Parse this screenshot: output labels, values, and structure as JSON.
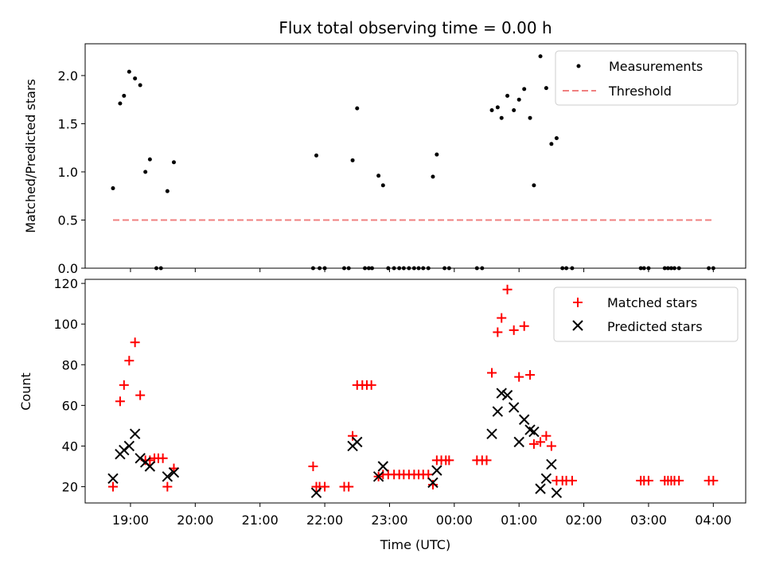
{
  "chart_data": [
    {
      "type": "scatter",
      "title": "Flux total observing time = 0.00 h",
      "xlabel": "",
      "ylabel": "Matched/Predicted stars",
      "xlim": [
        18.3,
        28.5
      ],
      "ylim": [
        0,
        2.33
      ],
      "yticks": [
        0.0,
        0.5,
        1.0,
        1.5,
        2.0
      ],
      "ytick_labels": [
        "0.0",
        "0.5",
        "1.0",
        "1.5",
        "2.0"
      ],
      "legend_position": "top-right",
      "series": [
        {
          "name": "Measurements",
          "kind": "points",
          "color": "#000000",
          "points": [
            [
              18.73,
              0.83
            ],
            [
              18.84,
              1.71
            ],
            [
              18.9,
              1.79
            ],
            [
              18.98,
              2.04
            ],
            [
              19.07,
              1.97
            ],
            [
              19.15,
              1.9
            ],
            [
              19.23,
              1.0
            ],
            [
              19.3,
              1.13
            ],
            [
              19.4,
              0.0
            ],
            [
              19.47,
              0.0
            ],
            [
              19.57,
              0.8
            ],
            [
              19.67,
              1.1
            ],
            [
              21.82,
              0.0
            ],
            [
              21.87,
              1.17
            ],
            [
              21.92,
              0.0
            ],
            [
              22.0,
              0.0
            ],
            [
              22.3,
              0.0
            ],
            [
              22.37,
              0.0
            ],
            [
              22.43,
              1.12
            ],
            [
              22.5,
              1.66
            ],
            [
              22.62,
              0.0
            ],
            [
              22.68,
              0.0
            ],
            [
              22.73,
              0.0
            ],
            [
              22.83,
              0.96
            ],
            [
              22.9,
              0.86
            ],
            [
              22.98,
              0.0
            ],
            [
              23.07,
              0.0
            ],
            [
              23.15,
              0.0
            ],
            [
              23.22,
              0.0
            ],
            [
              23.3,
              0.0
            ],
            [
              23.38,
              0.0
            ],
            [
              23.45,
              0.0
            ],
            [
              23.52,
              0.0
            ],
            [
              23.6,
              0.0
            ],
            [
              23.67,
              0.95
            ],
            [
              23.73,
              1.18
            ],
            [
              23.85,
              0.0
            ],
            [
              23.92,
              0.0
            ],
            [
              24.35,
              0.0
            ],
            [
              24.43,
              0.0
            ],
            [
              24.58,
              1.64
            ],
            [
              24.67,
              1.67
            ],
            [
              24.73,
              1.56
            ],
            [
              24.82,
              1.79
            ],
            [
              24.92,
              1.64
            ],
            [
              25.0,
              1.75
            ],
            [
              25.08,
              1.86
            ],
            [
              25.17,
              1.56
            ],
            [
              25.23,
              0.86
            ],
            [
              25.33,
              2.2
            ],
            [
              25.42,
              1.87
            ],
            [
              25.5,
              1.29
            ],
            [
              25.58,
              1.35
            ],
            [
              25.67,
              0.0
            ],
            [
              25.73,
              0.0
            ],
            [
              25.82,
              0.0
            ],
            [
              26.88,
              0.0
            ],
            [
              26.93,
              0.0
            ],
            [
              27.0,
              0.0
            ],
            [
              27.25,
              0.0
            ],
            [
              27.3,
              0.0
            ],
            [
              27.35,
              0.0
            ],
            [
              27.4,
              0.0
            ],
            [
              27.47,
              0.0
            ],
            [
              27.93,
              0.0
            ],
            [
              28.0,
              0.0
            ]
          ]
        },
        {
          "name": "Threshold",
          "kind": "dashed-line",
          "color": "#f08080",
          "points": [
            [
              18.73,
              0.5
            ],
            [
              28.0,
              0.5
            ]
          ]
        }
      ]
    },
    {
      "type": "scatter",
      "title": "",
      "xlabel": "Time (UTC)",
      "ylabel": "Count",
      "xlim": [
        18.3,
        28.5
      ],
      "ylim": [
        12,
        122
      ],
      "yticks": [
        20,
        40,
        60,
        80,
        100,
        120
      ],
      "ytick_labels": [
        "20",
        "40",
        "60",
        "80",
        "100",
        "120"
      ],
      "xticks": [
        19,
        20,
        21,
        22,
        23,
        24,
        25,
        26,
        27,
        28
      ],
      "xtick_labels": [
        "19:00",
        "20:00",
        "21:00",
        "22:00",
        "23:00",
        "00:00",
        "01:00",
        "02:00",
        "03:00",
        "04:00"
      ],
      "legend_position": "top-right",
      "series": [
        {
          "name": "Matched stars",
          "kind": "plus",
          "color": "#ff0000",
          "points": [
            [
              18.73,
              20
            ],
            [
              18.84,
              62
            ],
            [
              18.9,
              70
            ],
            [
              18.98,
              82
            ],
            [
              19.07,
              91
            ],
            [
              19.15,
              65
            ],
            [
              19.23,
              33
            ],
            [
              19.3,
              33
            ],
            [
              19.37,
              34
            ],
            [
              19.43,
              34
            ],
            [
              19.5,
              34
            ],
            [
              19.57,
              20
            ],
            [
              19.67,
              29
            ],
            [
              21.82,
              30
            ],
            [
              21.87,
              20
            ],
            [
              21.92,
              20
            ],
            [
              22.0,
              20
            ],
            [
              22.3,
              20
            ],
            [
              22.37,
              20
            ],
            [
              22.43,
              45
            ],
            [
              22.5,
              70
            ],
            [
              22.58,
              70
            ],
            [
              22.65,
              70
            ],
            [
              22.72,
              70
            ],
            [
              22.83,
              25
            ],
            [
              22.9,
              26
            ],
            [
              22.98,
              26
            ],
            [
              23.07,
              26
            ],
            [
              23.15,
              26
            ],
            [
              23.22,
              26
            ],
            [
              23.3,
              26
            ],
            [
              23.38,
              26
            ],
            [
              23.45,
              26
            ],
            [
              23.52,
              26
            ],
            [
              23.6,
              26
            ],
            [
              23.67,
              21
            ],
            [
              23.73,
              33
            ],
            [
              23.8,
              33
            ],
            [
              23.87,
              33
            ],
            [
              23.92,
              33
            ],
            [
              24.35,
              33
            ],
            [
              24.43,
              33
            ],
            [
              24.5,
              33
            ],
            [
              24.58,
              76
            ],
            [
              24.67,
              96
            ],
            [
              24.73,
              103
            ],
            [
              24.82,
              117
            ],
            [
              24.92,
              97
            ],
            [
              25.0,
              74
            ],
            [
              25.08,
              99
            ],
            [
              25.17,
              75
            ],
            [
              25.23,
              41
            ],
            [
              25.33,
              42
            ],
            [
              25.42,
              45
            ],
            [
              25.5,
              40
            ],
            [
              25.58,
              23
            ],
            [
              25.67,
              23
            ],
            [
              25.73,
              23
            ],
            [
              25.82,
              23
            ],
            [
              26.88,
              23
            ],
            [
              26.93,
              23
            ],
            [
              27.0,
              23
            ],
            [
              27.25,
              23
            ],
            [
              27.3,
              23
            ],
            [
              27.35,
              23
            ],
            [
              27.4,
              23
            ],
            [
              27.47,
              23
            ],
            [
              27.93,
              23
            ],
            [
              28.0,
              23
            ]
          ]
        },
        {
          "name": "Predicted stars",
          "kind": "cross",
          "color": "#000000",
          "points": [
            [
              18.73,
              24
            ],
            [
              18.84,
              36
            ],
            [
              18.9,
              38
            ],
            [
              18.98,
              40
            ],
            [
              19.07,
              46
            ],
            [
              19.15,
              34
            ],
            [
              19.23,
              32
            ],
            [
              19.3,
              30
            ],
            [
              19.57,
              25
            ],
            [
              19.67,
              27
            ],
            [
              21.87,
              17
            ],
            [
              22.43,
              40
            ],
            [
              22.5,
              42
            ],
            [
              22.83,
              25
            ],
            [
              22.9,
              30
            ],
            [
              23.67,
              22
            ],
            [
              23.73,
              28
            ],
            [
              24.58,
              46
            ],
            [
              24.67,
              57
            ],
            [
              24.73,
              66
            ],
            [
              24.82,
              65
            ],
            [
              24.92,
              59
            ],
            [
              25.0,
              42
            ],
            [
              25.08,
              53
            ],
            [
              25.17,
              48
            ],
            [
              25.23,
              47
            ],
            [
              25.33,
              19
            ],
            [
              25.42,
              24
            ],
            [
              25.5,
              31
            ],
            [
              25.58,
              17
            ]
          ]
        }
      ]
    }
  ]
}
